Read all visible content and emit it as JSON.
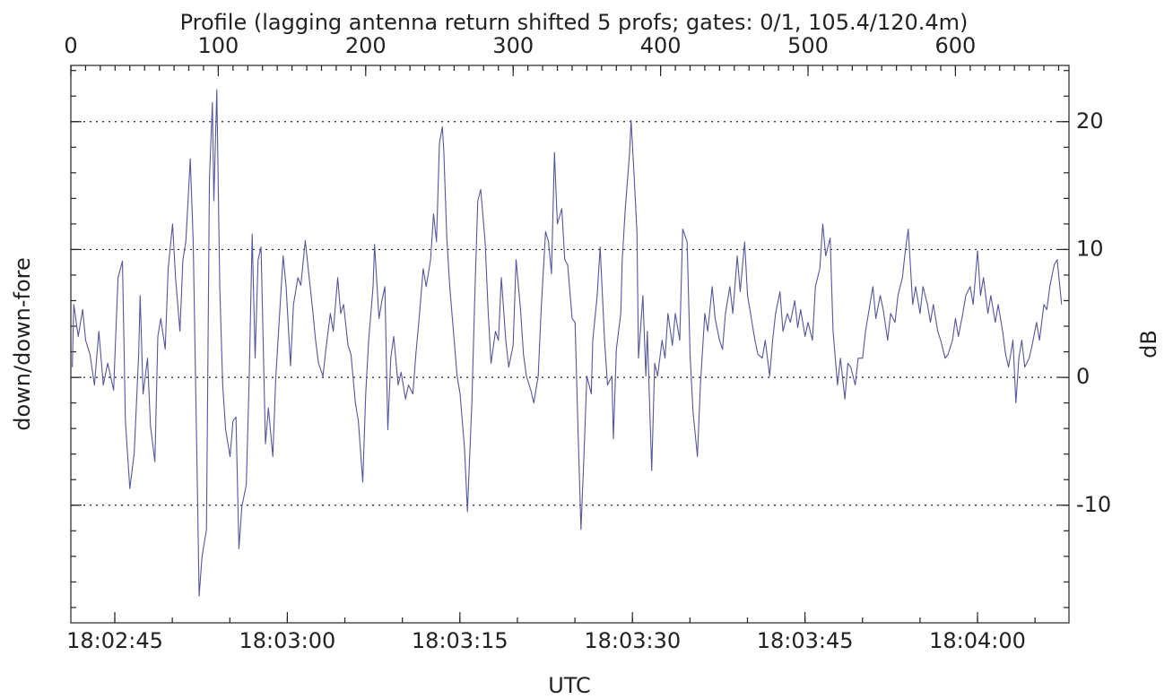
{
  "chart_data": {
    "type": "line",
    "title": "Profile (lagging antenna return shifted 5 profs; gates: 0/1, 105.4/120.4m)",
    "x_label": "UTC",
    "y_label": "down/down-fore",
    "y_label_right": "dB",
    "x": [
      1,
      2,
      5,
      8,
      10,
      13,
      16,
      19,
      22,
      25,
      29,
      32,
      35,
      37,
      40,
      43,
      46,
      47,
      49,
      52,
      54,
      57,
      59,
      61,
      64,
      66,
      69,
      71,
      74,
      76,
      78,
      81,
      83,
      86,
      87,
      89,
      92,
      94,
      96,
      97,
      99,
      101,
      103,
      105,
      108,
      110,
      112,
      114,
      116,
      119,
      121,
      123,
      125,
      127,
      129,
      132,
      134,
      137,
      139,
      142,
      144,
      146,
      149,
      151,
      154,
      156,
      159,
      161,
      164,
      166,
      168,
      171,
      173,
      176,
      178,
      181,
      183,
      185,
      188,
      190,
      193,
      195,
      198,
      200,
      202,
      205,
      206,
      209,
      211,
      213,
      215,
      217,
      219,
      222,
      224,
      227,
      229,
      232,
      234,
      236,
      239,
      241,
      244,
      246,
      248,
      250,
      252,
      253,
      255,
      257,
      260,
      262,
      264,
      267,
      269,
      272,
      274,
      276,
      278,
      281,
      283,
      285,
      288,
      290,
      292,
      295,
      297,
      300,
      302,
      305,
      307,
      309,
      312,
      314,
      317,
      319,
      322,
      324,
      326,
      328,
      330,
      333,
      335,
      337,
      340,
      342,
      344,
      346,
      348,
      350,
      353,
      354,
      357,
      359,
      362,
      364,
      367,
      368,
      370,
      373,
      374,
      376,
      379,
      380,
      382,
      384,
      385,
      388,
      390,
      391,
      394,
      396,
      398,
      401,
      403,
      405,
      408,
      410,
      413,
      415,
      418,
      420,
      422,
      425,
      427,
      430,
      432,
      435,
      437,
      440,
      442,
      444,
      447,
      449,
      452,
      454,
      457,
      459,
      461,
      464,
      466,
      469,
      471,
      474,
      476,
      478,
      481,
      483,
      486,
      488,
      491,
      493,
      495,
      498,
      500,
      503,
      505,
      508,
      510,
      512,
      515,
      517,
      520,
      522,
      525,
      527,
      529,
      532,
      534,
      537,
      539,
      542,
      544,
      546,
      549,
      551,
      554,
      556,
      559,
      561,
      564,
      566,
      568,
      571,
      573,
      576,
      578,
      581,
      583,
      585,
      588,
      590,
      593,
      595,
      598,
      600,
      602,
      605,
      607,
      610,
      612,
      615,
      617,
      619,
      622,
      624,
      627,
      629,
      632,
      634,
      636,
      639,
      641,
      643,
      645,
      647,
      650,
      652,
      655,
      657,
      660,
      662,
      664,
      667,
      669,
      672
    ],
    "series": [
      {
        "color": "#56569a",
        "values": [
          0.8,
          5.7,
          3.2,
          5.3,
          2.9,
          1.8,
          -0.6,
          3.6,
          -0.6,
          1.1,
          -1,
          7.8,
          9.1,
          -3.4,
          -8.7,
          -5.9,
          1.8,
          6.4,
          -1.3,
          1.5,
          -3.8,
          -6.6,
          3.2,
          4.6,
          2.2,
          8.5,
          12,
          7.8,
          3.6,
          9.2,
          10.6,
          17.1,
          10.6,
          -9.8,
          -17.1,
          -14,
          -11.9,
          15.5,
          21.5,
          13.8,
          22.5,
          7.1,
          -0.6,
          -4.1,
          -6.2,
          -3.4,
          -3.1,
          -13.4,
          -10.1,
          -8.4,
          0.1,
          11.2,
          1.5,
          9.2,
          10.2,
          -5.2,
          -2.4,
          -6.2,
          0,
          5.7,
          9.5,
          7.1,
          0.9,
          5.7,
          7.8,
          7.2,
          10.7,
          8.5,
          5.3,
          2.9,
          1.1,
          0.1,
          2.2,
          5,
          3.6,
          7.8,
          5,
          5.7,
          2.5,
          1.8,
          -2,
          -3.4,
          -8.2,
          -1.3,
          2.9,
          7.1,
          10.4,
          4.6,
          6,
          7.1,
          -4.1,
          1.5,
          3.2,
          -0.6,
          0.4,
          -1.7,
          -0.6,
          -1.3,
          1.8,
          4.3,
          8.5,
          7.1,
          9.2,
          12.8,
          10.6,
          18.3,
          19.6,
          17.6,
          10.9,
          7.1,
          2.9,
          0.1,
          -1.3,
          -5.5,
          -10.5,
          -2,
          6.4,
          13.8,
          14.7,
          10.6,
          5.3,
          1.1,
          3.6,
          2.9,
          7.8,
          2.9,
          0.8,
          2.5,
          9.2,
          5.3,
          1.8,
          0.1,
          -1,
          -2,
          0.1,
          5.3,
          11.4,
          10.6,
          8.1,
          17.6,
          12,
          13.2,
          9.2,
          8.8,
          4.6,
          4.3,
          -4.1,
          -11.9,
          -6.2,
          0.1,
          -1.3,
          2.9,
          6.4,
          10.2,
          2.9,
          -0.6,
          0.1,
          -4.8,
          2.2,
          5,
          9.2,
          13.1,
          17.6,
          20.1,
          15.9,
          11.3,
          1.5,
          6.4,
          0.1,
          3.6,
          -7.3,
          1.1,
          0.1,
          2.9,
          1.5,
          5,
          2.5,
          5,
          2.9,
          11.6,
          10.6,
          1.8,
          -2.7,
          -6.2,
          -0.6,
          5,
          3.6,
          7.1,
          4.6,
          2.9,
          2.2,
          5,
          7.1,
          5,
          9.5,
          6.7,
          10.6,
          6.4,
          5,
          2.9,
          1.8,
          1.5,
          2.9,
          0.1,
          2.9,
          5,
          6.7,
          3.6,
          5,
          4.3,
          6,
          3.9,
          5.3,
          3.2,
          4.3,
          2.9,
          7.1,
          8.5,
          12,
          9.5,
          10.9,
          3.6,
          -0.6,
          1.5,
          -1.7,
          1.1,
          0.8,
          -0.6,
          1.5,
          1.5,
          3.6,
          5.7,
          7.1,
          4.6,
          6.4,
          5.3,
          2.9,
          5,
          4.3,
          6.4,
          7.8,
          9.9,
          11.6,
          5.7,
          7.1,
          5,
          7.1,
          5.7,
          4.3,
          5.7,
          3.6,
          2.9,
          1.5,
          1.8,
          2.9,
          4.6,
          3.2,
          5,
          6.4,
          7.1,
          5.7,
          9.9,
          6.4,
          7.8,
          5,
          6.4,
          4.3,
          5.7,
          3.6,
          1.8,
          0.8,
          2.9,
          -2,
          1.5,
          2.9,
          0.8,
          1.5,
          2.5,
          4.3,
          2.9,
          5.7,
          5.3,
          7.1,
          8.8,
          9.2,
          5.7
        ]
      }
    ],
    "xlim": [
      0,
      677
    ],
    "xticks": [
      0,
      100,
      200,
      300,
      400,
      500,
      600
    ],
    "x2lim": [
      64961.18,
      65047.95
    ],
    "x2ticks": [
      {
        "value": 64965,
        "label": "18:02:45"
      },
      {
        "value": 64980,
        "label": "18:03:00"
      },
      {
        "value": 64995,
        "label": "18:03:15"
      },
      {
        "value": 65010,
        "label": "18:03:30"
      },
      {
        "value": 65025,
        "label": "18:03:45"
      },
      {
        "value": 65040,
        "label": "18:04:00"
      }
    ],
    "ylim": [
      -19.2,
      24.4
    ],
    "yticks": [
      -10,
      0,
      10,
      20
    ],
    "grid": true,
    "minor_ticks": {
      "x": 10,
      "x2": 5,
      "y": 2
    }
  }
}
